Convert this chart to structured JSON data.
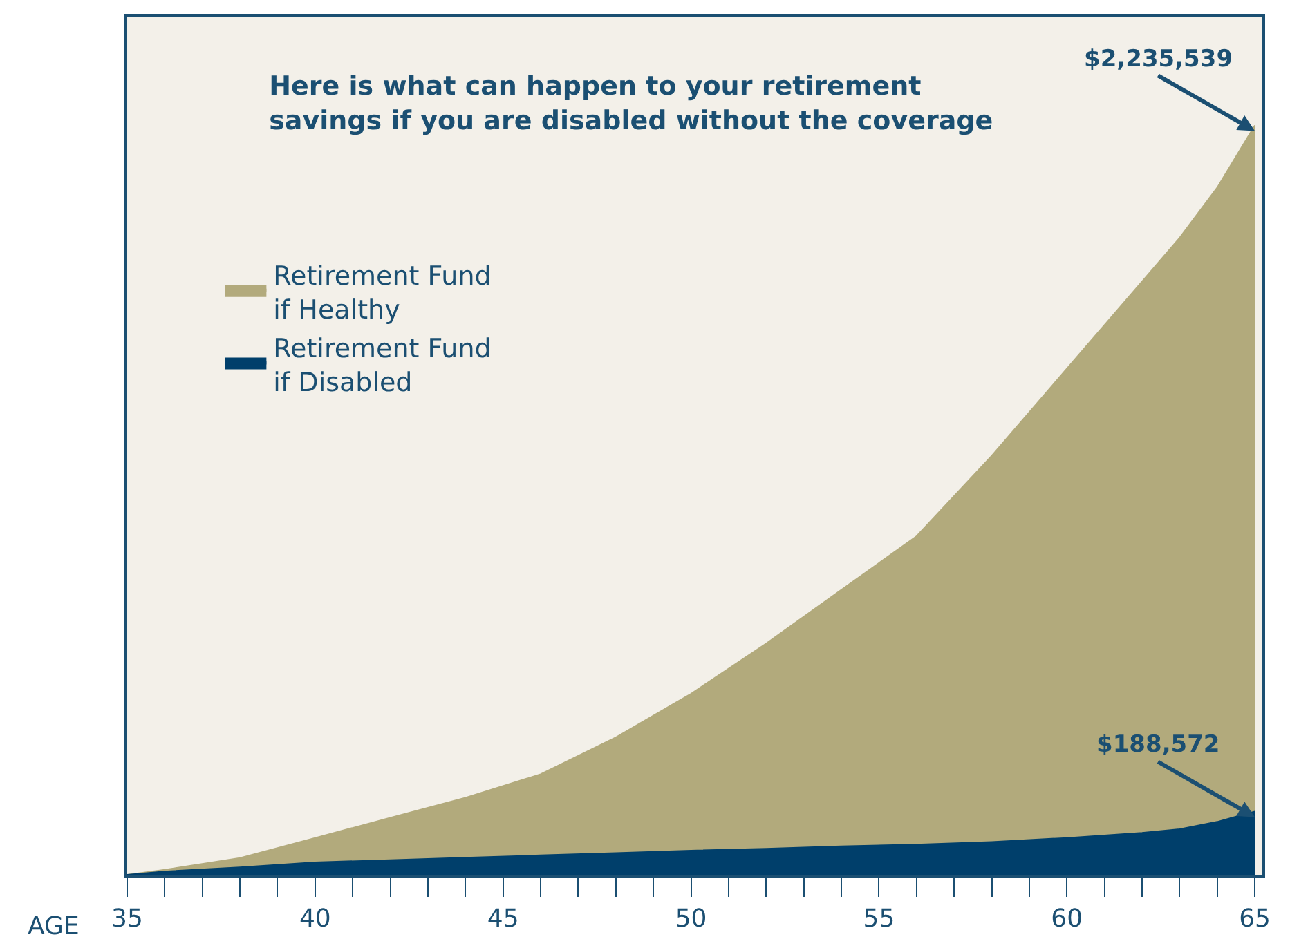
{
  "chart_data": {
    "type": "area",
    "title": "Here is what can happen to your retirement\nsavings if you are disabled without the coverage",
    "xlabel": "AGE",
    "x": [
      35,
      36,
      38,
      40,
      42,
      44,
      46,
      48,
      50,
      52,
      54,
      56,
      58,
      60,
      62,
      63,
      64,
      65
    ],
    "series": [
      {
        "name": "Retirement Fund\nif Healthy",
        "color": "#b2aa7c",
        "values": [
          0,
          15000,
          50000,
          110000,
          170000,
          230000,
          300000,
          410000,
          540000,
          690000,
          850000,
          1010000,
          1250000,
          1510000,
          1770000,
          1900000,
          2050000,
          2235539
        ],
        "value_labels": [
          null,
          null,
          null,
          null,
          null,
          null,
          null,
          null,
          null,
          null,
          null,
          null,
          null,
          null,
          null,
          null,
          null,
          "$2,235,539"
        ]
      },
      {
        "name": "Retirement Fund\nif Disabled",
        "color": "#003f6b",
        "values": [
          0,
          10000,
          22000,
          37000,
          44000,
          51000,
          58000,
          65000,
          72000,
          78000,
          85000,
          90000,
          98000,
          110000,
          125000,
          136000,
          158000,
          188572
        ],
        "value_labels": [
          null,
          null,
          null,
          null,
          null,
          null,
          null,
          null,
          null,
          null,
          null,
          null,
          null,
          null,
          null,
          null,
          null,
          "$188,572"
        ]
      }
    ],
    "xlim": [
      35,
      65.2
    ],
    "ylim": [
      0,
      2560000
    ],
    "xticks": [
      35,
      {
        "value": 36,
        "label": null
      },
      {
        "value": 37,
        "label": null
      },
      {
        "value": 38,
        "label": null
      },
      {
        "value": 39,
        "label": null
      },
      40,
      {
        "value": 41,
        "label": null
      },
      {
        "value": 42,
        "label": null
      },
      {
        "value": 43,
        "label": null
      },
      {
        "value": 44,
        "label": null
      },
      45,
      {
        "value": 46,
        "label": null
      },
      {
        "value": 47,
        "label": null
      },
      {
        "value": 48,
        "label": null
      },
      {
        "value": 49,
        "label": null
      },
      50,
      {
        "value": 51,
        "label": null
      },
      {
        "value": 52,
        "label": null
      },
      {
        "value": 53,
        "label": null
      },
      {
        "value": 54,
        "label": null
      },
      55,
      {
        "value": 56,
        "label": null
      },
      {
        "value": 57,
        "label": null
      },
      {
        "value": 58,
        "label": null
      },
      {
        "value": 59,
        "label": null
      },
      60,
      {
        "value": 61,
        "label": null
      },
      {
        "value": 62,
        "label": null
      },
      {
        "value": 63,
        "label": null
      },
      {
        "value": 64,
        "label": null
      },
      65
    ],
    "tick_labels": "x",
    "grid": false,
    "legend": "top left"
  }
}
